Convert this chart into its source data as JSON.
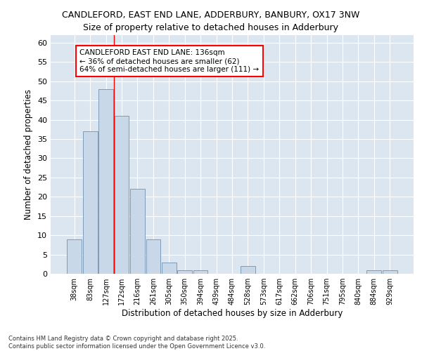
{
  "title1": "CANDLEFORD, EAST END LANE, ADDERBURY, BANBURY, OX17 3NW",
  "title2": "Size of property relative to detached houses in Adderbury",
  "xlabel": "Distribution of detached houses by size in Adderbury",
  "ylabel": "Number of detached properties",
  "bar_color": "#c8d8e8",
  "bar_edge_color": "#7090b0",
  "background_color": "#dce6f0",
  "categories": [
    "38sqm",
    "83sqm",
    "127sqm",
    "172sqm",
    "216sqm",
    "261sqm",
    "305sqm",
    "350sqm",
    "394sqm",
    "439sqm",
    "484sqm",
    "528sqm",
    "573sqm",
    "617sqm",
    "662sqm",
    "706sqm",
    "751sqm",
    "795sqm",
    "840sqm",
    "884sqm",
    "929sqm"
  ],
  "values": [
    9,
    37,
    48,
    41,
    22,
    9,
    3,
    1,
    1,
    0,
    0,
    2,
    0,
    0,
    0,
    0,
    0,
    0,
    0,
    1,
    1
  ],
  "ylim": [
    0,
    62
  ],
  "yticks": [
    0,
    5,
    10,
    15,
    20,
    25,
    30,
    35,
    40,
    45,
    50,
    55,
    60
  ],
  "red_line_x": 2.5,
  "annotation_title": "CANDLEFORD EAST END LANE: 136sqm",
  "annotation_line2": "← 36% of detached houses are smaller (62)",
  "annotation_line3": "64% of semi-detached houses are larger (111) →",
  "footer1": "Contains HM Land Registry data © Crown copyright and database right 2025.",
  "footer2": "Contains public sector information licensed under the Open Government Licence v3.0."
}
